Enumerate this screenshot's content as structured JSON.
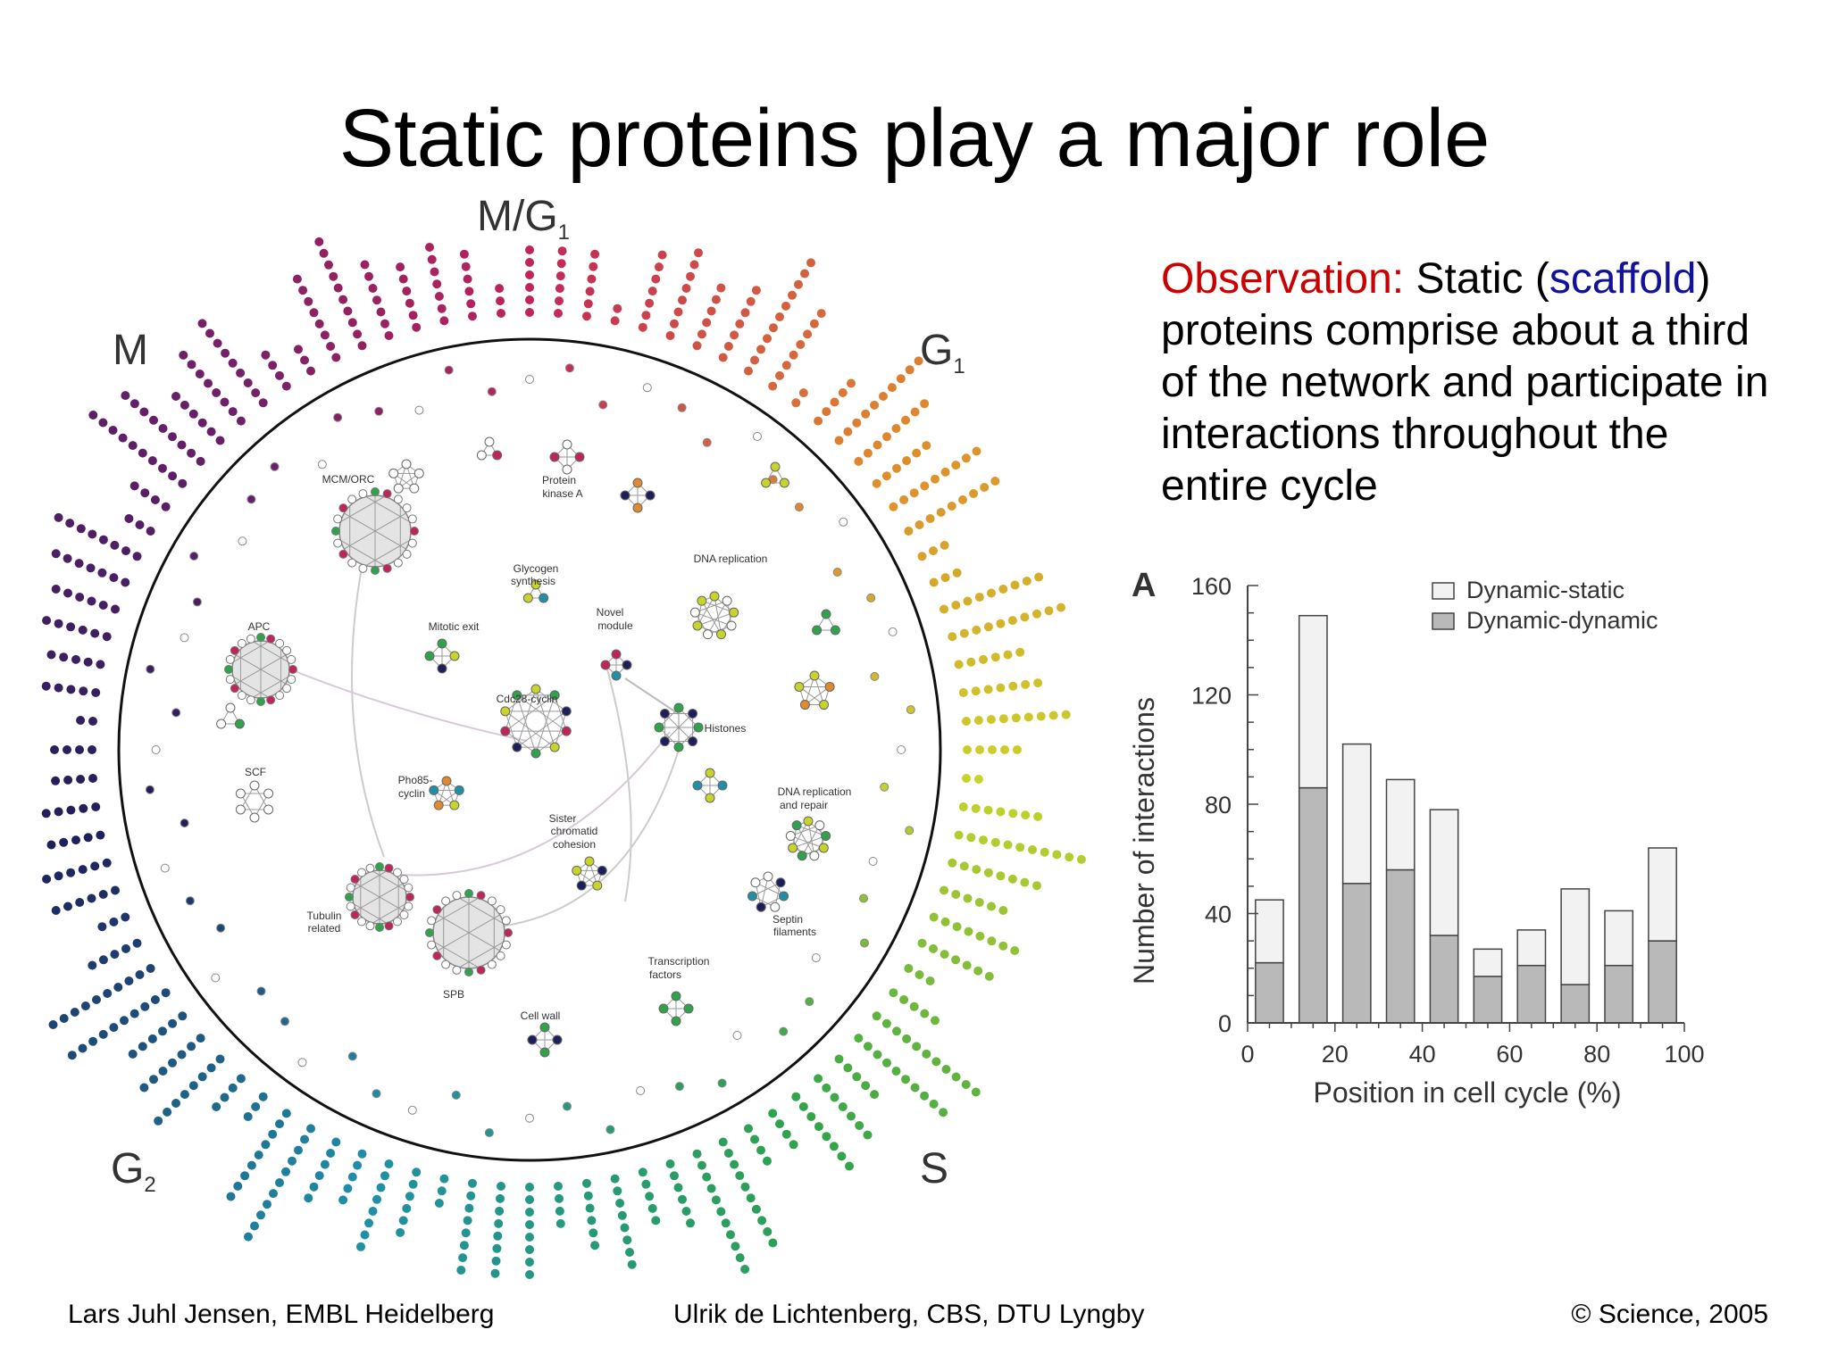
{
  "title": "Static proteins play a major role",
  "network": {
    "phases": {
      "m_g1": "M/G",
      "m_g1_sub": "1",
      "m": "M",
      "g1": "G",
      "g1_sub": "1",
      "s": "S",
      "g2": "G",
      "g2_sub": "2"
    },
    "modules": {
      "mcm_orc": "MCM/ORC",
      "protein_kinase_a_1": "Protein",
      "protein_kinase_a_2": "kinase A",
      "glycogen_1": "Glycogen",
      "glycogen_2": "synthesis",
      "dna_replication": "DNA replication",
      "apc": "APC",
      "mitotic_exit": "Mitotic exit",
      "novel_module_1": "Novel",
      "novel_module_2": "module",
      "cdc28_cyclin": "Cdc28-cyclin",
      "histones": "Histones",
      "scf": "SCF",
      "pho85_1": "Pho85-",
      "pho85_2": "cyclin",
      "dna_rep_repair_1": "DNA replication",
      "dna_rep_repair_2": "and repair",
      "sister_1": "Sister",
      "sister_2": "chromatid",
      "sister_3": "cohesion",
      "tubulin_1": "Tubulin",
      "tubulin_2": "related",
      "septin_1": "Septin",
      "septin_2": "filaments",
      "spb": "SPB",
      "transcription_1": "Transcription",
      "transcription_2": "factors",
      "cell_wall": "Cell wall"
    },
    "colors": {
      "m_phase": "#c0245a",
      "g1_phase": "#e08a2e",
      "g1_s": "#c9d42a",
      "s_phase": "#2fa34a",
      "g2_phase": "#1f8fa8",
      "g2_m": "#1e1f5a",
      "node_gray": "#bbbbbb",
      "ring": "#111111"
    }
  },
  "observation": {
    "label": "Observation:",
    "text_1": " Static (",
    "scaffold": "scaffold",
    "text_2": ") proteins comprise about a third of the network and participate in interactions throughout the entire cycle"
  },
  "chart_data": {
    "type": "bar",
    "panel_label": "A",
    "stacked": true,
    "x": [
      5,
      15,
      25,
      35,
      45,
      55,
      65,
      75,
      85,
      95
    ],
    "series": [
      {
        "name": "Dynamic-dynamic",
        "values": [
          22,
          86,
          51,
          56,
          32,
          17,
          21,
          14,
          21,
          30
        ],
        "color": "#b9b9b9"
      },
      {
        "name": "Dynamic-static",
        "values": [
          23,
          63,
          51,
          33,
          46,
          10,
          13,
          35,
          20,
          34
        ],
        "color": "#f2f2f2"
      }
    ],
    "xlabel": "Position in cell cycle (%)",
    "ylabel": "Number of interactions",
    "xlim": [
      0,
      100
    ],
    "ylim": [
      0,
      160
    ],
    "xticks": [
      0,
      20,
      40,
      60,
      80,
      100
    ],
    "yticks": [
      0,
      40,
      80,
      120,
      160
    ],
    "legend_position": "top-right"
  },
  "footer": {
    "left": "Lars Juhl Jensen, EMBL Heidelberg",
    "center": "Ulrik de Lichtenberg, CBS, DTU Lyngby",
    "right": "© Science, 2005"
  }
}
